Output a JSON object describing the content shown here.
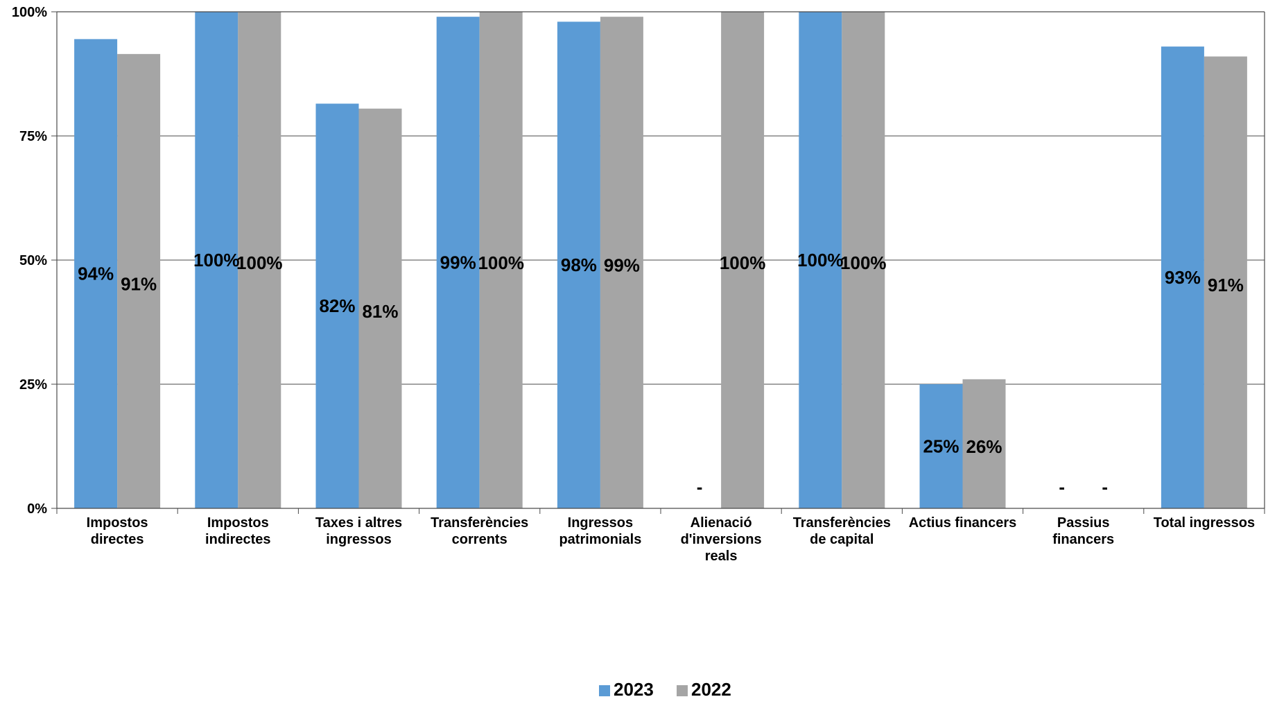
{
  "chart_data": {
    "type": "bar",
    "title": "",
    "xlabel": "",
    "ylabel": "",
    "ylim": [
      0,
      100
    ],
    "yticks": [
      "0%",
      "25%",
      "50%",
      "75%",
      "100%"
    ],
    "grid": true,
    "legend_position": "bottom",
    "categories": [
      [
        "Impostos",
        "directes"
      ],
      [
        "Impostos",
        "indirectes"
      ],
      [
        "Taxes i altres",
        "ingressos"
      ],
      [
        "Transferències",
        "corrents"
      ],
      [
        "Ingressos",
        "patrimonials"
      ],
      [
        "Alienació",
        "d'inversions",
        "reals"
      ],
      [
        "Transferències",
        "de capital"
      ],
      [
        "Actius financers"
      ],
      [
        "Passius",
        "financers"
      ],
      [
        "Total ingressos"
      ]
    ],
    "series": [
      {
        "name": "2023",
        "color": "#5b9bd5",
        "values": [
          94.5,
          100,
          81.5,
          99,
          98,
          0,
          100,
          25,
          0,
          93
        ],
        "labels": [
          "94%",
          "100%",
          "82%",
          "99%",
          "98%",
          "-",
          "100%",
          "25%",
          "-",
          "93%"
        ]
      },
      {
        "name": "2022",
        "color": "#a5a5a5",
        "values": [
          91.5,
          100,
          80.5,
          100,
          99,
          100,
          100,
          26,
          0,
          91
        ],
        "labels": [
          "91%",
          "100%",
          "81%",
          "100%",
          "99%",
          "100%",
          "100%",
          "26%",
          "-",
          "91%"
        ]
      }
    ]
  }
}
